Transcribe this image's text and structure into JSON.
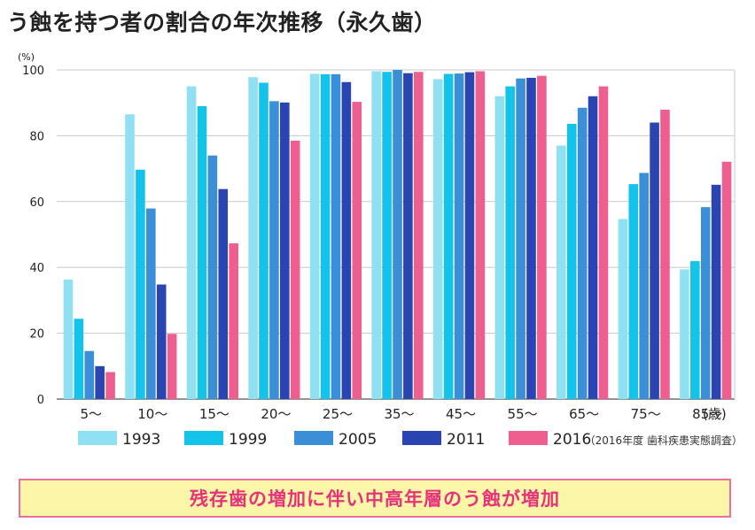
{
  "title": "う蝕を持つ者の割合の年次推移（永久歯）",
  "source": "（2016年度 歯科疾患実態調査）",
  "banner": "残存歯の増加に伴い中高年層のう蝕が増加",
  "colors": {
    "1993": "#8fe0f2",
    "1999": "#13c3ea",
    "2005": "#3b8fd6",
    "2011": "#2a45b1",
    "2016": "#ee5f90",
    "banner_bg": "#fcf6a8",
    "banner_border": "#ee6f9b",
    "banner_text": "#e7327a"
  },
  "chart_data": {
    "type": "bar",
    "title": "う蝕を持つ者の割合の年次推移（永久歯）",
    "ylabel": "(%)",
    "xlabel": "(歳)",
    "ylim": [
      0,
      100
    ],
    "yticks": [
      0,
      20,
      40,
      60,
      80,
      100
    ],
    "grid": true,
    "legend_position": "bottom",
    "categories": [
      "5〜",
      "10〜",
      "15〜",
      "20〜",
      "25〜",
      "35〜",
      "45〜",
      "55〜",
      "65〜",
      "75〜",
      "85〜"
    ],
    "series": [
      {
        "name": "1993",
        "color": "#8fe0f2",
        "values": [
          36.3,
          86.5,
          95.0,
          97.8,
          98.8,
          99.6,
          97.2,
          92.0,
          77.0,
          54.7,
          39.4
        ]
      },
      {
        "name": "1999",
        "color": "#13c3ea",
        "values": [
          24.4,
          69.7,
          89.0,
          96.1,
          98.7,
          99.4,
          98.8,
          95.0,
          83.6,
          65.3,
          41.9
        ]
      },
      {
        "name": "2005",
        "color": "#3b8fd6",
        "values": [
          14.6,
          57.9,
          74.0,
          90.5,
          98.7,
          100.0,
          98.9,
          97.4,
          88.5,
          68.7,
          58.3
        ]
      },
      {
        "name": "2011",
        "color": "#2a45b1",
        "values": [
          10.0,
          34.8,
          63.8,
          90.1,
          96.3,
          99.0,
          99.3,
          97.6,
          92.0,
          84.0,
          65.1
        ]
      },
      {
        "name": "2016",
        "color": "#ee5f90",
        "values": [
          8.2,
          19.8,
          47.3,
          78.5,
          90.3,
          99.4,
          99.6,
          98.2,
          95.0,
          87.9,
          72.1
        ]
      }
    ]
  }
}
